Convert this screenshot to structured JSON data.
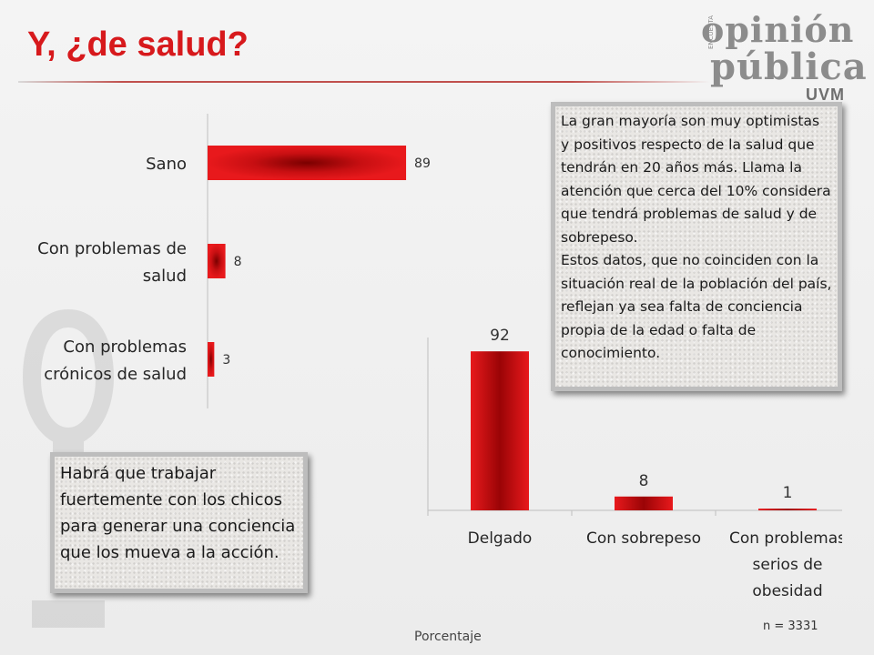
{
  "page": {
    "title": "Y, ¿de salud?",
    "logo": {
      "line1": "opinión",
      "line2": "pública",
      "sub": "UVM",
      "small": "ENCUESTA"
    },
    "note_top": [
      "La gran mayoría son muy optimistas y positivos respecto de la salud que tendrán en 20 años más. Llama la atención que cerca del 10% considera que tendrá problemas de salud y de sobrepeso.",
      "Estos datos, que no coinciden con la situación real de la población del país, reflejan ya sea falta de conciencia propia de la edad o falta de conocimiento."
    ],
    "note_bottom": "Habrá que trabajar fuertemente con los chicos para generar una conciencia que los mueva a la acción.",
    "sample": "n = 3331",
    "units_label": "Porcentaje"
  },
  "colors": {
    "title": "#d7191c",
    "bar_light": "#e41a1c",
    "bar_dark": "#8b0000",
    "axis": "#bfbfbf"
  },
  "chart_data": [
    {
      "type": "bar",
      "orientation": "horizontal",
      "categories": [
        "Sano",
        "Con problemas de salud",
        "Con problemas crónicos de salud"
      ],
      "category_lines": [
        [
          "Sano"
        ],
        [
          "Con problemas de",
          "salud"
        ],
        [
          "Con problemas",
          "crónicos de salud"
        ]
      ],
      "values": [
        89,
        8,
        3
      ],
      "xlim": [
        0,
        100
      ],
      "grid": false,
      "legend": "none"
    },
    {
      "type": "bar",
      "orientation": "vertical",
      "categories": [
        "Delgado",
        "Con sobrepeso",
        "Con problemas serios de obesidad"
      ],
      "category_lines": [
        [
          "Delgado"
        ],
        [
          "Con sobrepeso"
        ],
        [
          "Con problemas",
          "serios de",
          "obesidad"
        ]
      ],
      "values": [
        92,
        8,
        1
      ],
      "ylim": [
        0,
        100
      ],
      "grid": false,
      "legend": "none"
    }
  ]
}
